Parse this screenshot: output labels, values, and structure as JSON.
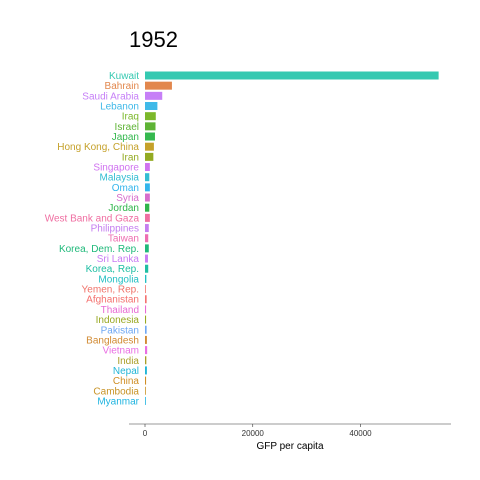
{
  "chart_data": {
    "type": "bar",
    "orientation": "horizontal",
    "title": "1952",
    "xlabel": "GFP per capita",
    "ylabel": "",
    "xlim": [
      0,
      55000
    ],
    "xticks": [
      0,
      20000,
      40000
    ],
    "xtick_labels": [
      "0",
      "20000",
      "40000"
    ],
    "legend": "none",
    "grid": false,
    "categories": [
      "Kuwait",
      "Bahrain",
      "Saudi Arabia",
      "Lebanon",
      "Iraq",
      "Israel",
      "Japan",
      "Hong Kong, China",
      "Iran",
      "Singapore",
      "Malaysia",
      "Oman",
      "Syria",
      "Jordan",
      "West Bank and Gaza",
      "Philippines",
      "Taiwan",
      "Korea, Dem. Rep.",
      "Sri Lanka",
      "Korea, Rep.",
      "Mongolia",
      "Yemen, Rep.",
      "Afghanistan",
      "Thailand",
      "Indonesia",
      "Pakistan",
      "Bangladesh",
      "Vietnam",
      "India",
      "Nepal",
      "China",
      "Cambodia",
      "Myanmar"
    ],
    "values": [
      54500,
      5000,
      3200,
      2300,
      2000,
      1950,
      1850,
      1650,
      1550,
      900,
      800,
      900,
      900,
      800,
      900,
      700,
      600,
      700,
      550,
      600,
      250,
      100,
      300,
      200,
      200,
      300,
      350,
      400,
      250,
      350,
      200,
      100,
      100
    ],
    "colors": [
      "#35c9b1",
      "#e2874d",
      "#c67ff7",
      "#3fb9e8",
      "#7cb82b",
      "#5eb335",
      "#35b84f",
      "#c5a12a",
      "#93aa22",
      "#d073f0",
      "#32bdd2",
      "#33b5ec",
      "#d76dcc",
      "#2fb54b",
      "#ef6ea1",
      "#c57ef0",
      "#ee6eb1",
      "#1fb97a",
      "#c97cf4",
      "#1fbea3",
      "#22bfc2",
      "#f0736a",
      "#f4716f",
      "#e86ad4",
      "#98a822",
      "#6ea7f3",
      "#d18a32",
      "#e96ee3",
      "#aa9f29",
      "#21b5d6",
      "#cf8e25",
      "#c89326",
      "#1fb4e0"
    ]
  }
}
